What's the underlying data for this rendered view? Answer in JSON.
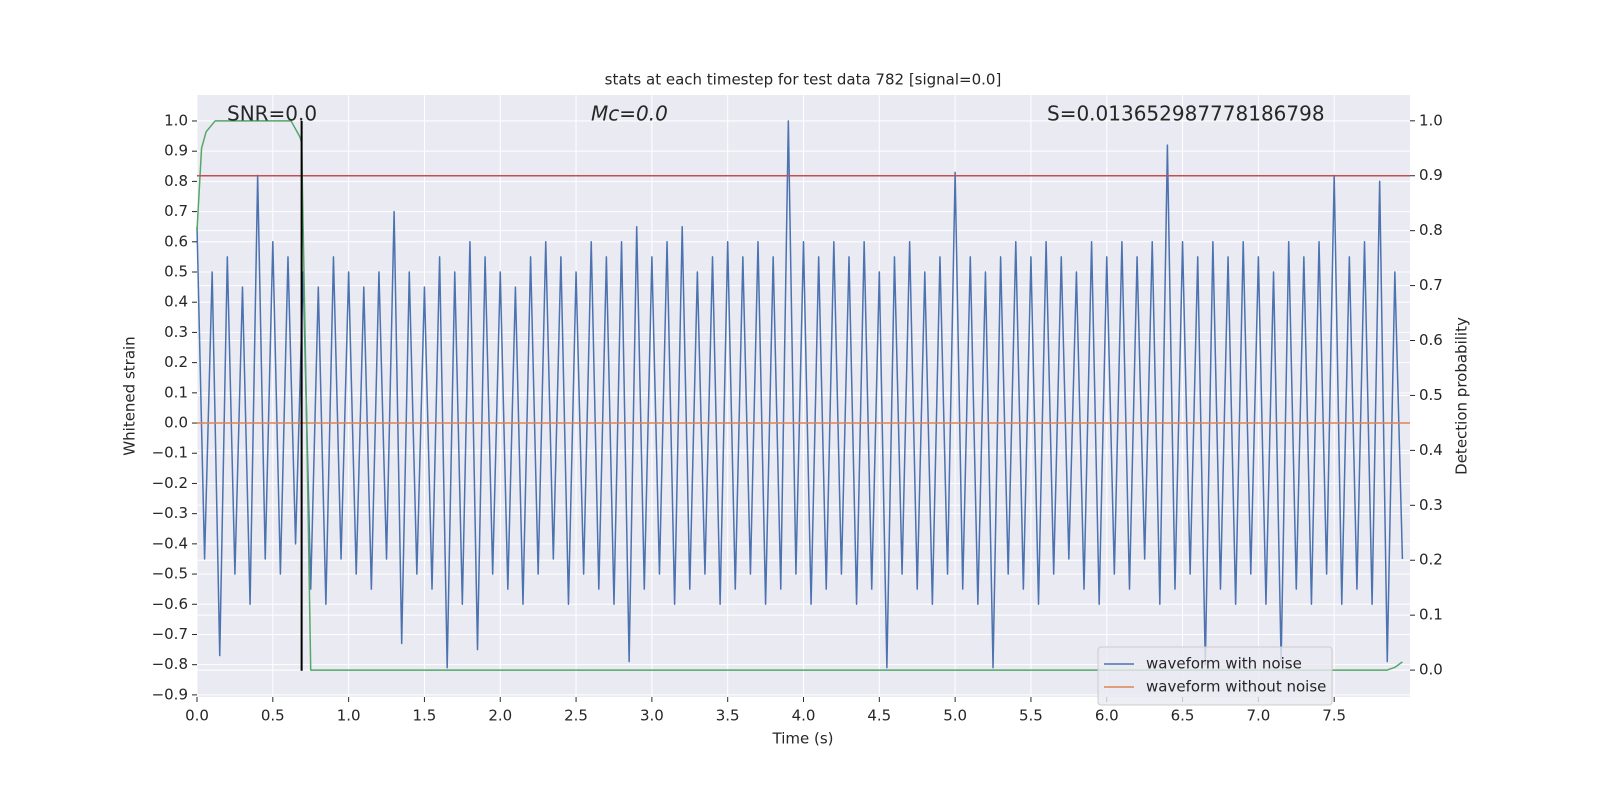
{
  "chart_data": {
    "type": "line",
    "title": "stats at each timestep for test data 782 [signal=0.0]",
    "xlabel": "Time (s)",
    "ylabel": "Whitened strain",
    "y2label": "Detection probability",
    "annotations": [
      "SNR=0.0",
      "Mc=0.0",
      "S=0.013652987778186798"
    ],
    "xlim": [
      0,
      8.0
    ],
    "ylim": [
      -0.907,
      1.086
    ],
    "y2lim": [
      -0.049,
      1.047
    ],
    "xticks": [
      {
        "value": 0,
        "label": "0.0"
      },
      0.5,
      {
        "value": 1,
        "label": "1.0"
      },
      1.5,
      {
        "value": 2,
        "label": "2.0"
      },
      2.5,
      {
        "value": 3,
        "label": "3.0"
      },
      3.5,
      {
        "value": 4,
        "label": "4.0"
      },
      4.5,
      {
        "value": 5,
        "label": "5.0"
      },
      5.5,
      {
        "value": 6,
        "label": "6.0"
      },
      6.5,
      {
        "value": 7,
        "label": "7.0"
      },
      7.5
    ],
    "yticks": [
      {
        "value": -0.9,
        "label": "−0.9"
      },
      {
        "value": -0.8,
        "label": "−0.8"
      },
      {
        "value": -0.7,
        "label": "−0.7"
      },
      {
        "value": -0.6,
        "label": "−0.6"
      },
      {
        "value": -0.5,
        "label": "−0.5"
      },
      {
        "value": -0.4,
        "label": "−0.4"
      },
      {
        "value": -0.3,
        "label": "−0.3"
      },
      {
        "value": -0.2,
        "label": "−0.2"
      },
      {
        "value": -0.1,
        "label": "−0.1"
      },
      {
        "value": 0,
        "label": "0.0"
      },
      0.1,
      0.2,
      0.3,
      0.4,
      0.5,
      0.6,
      0.7,
      0.8,
      0.9,
      {
        "value": 1,
        "label": "1.0"
      }
    ],
    "y2ticks": [
      {
        "value": 0,
        "label": "0.0"
      },
      0.1,
      0.2,
      0.3,
      0.4,
      0.5,
      0.6,
      0.7,
      0.8,
      0.9,
      {
        "value": 1,
        "label": "1.0"
      }
    ],
    "grid": true,
    "legend": "lower right",
    "series": [
      {
        "name": "waveform with noise",
        "color": "#4c72b0",
        "x": [
          0,
          0.05,
          0.1,
          0.15,
          0.2,
          0.25,
          0.3,
          0.35,
          0.4,
          0.45,
          0.5,
          0.55,
          0.6,
          0.65,
          0.7,
          0.75,
          0.8,
          0.85,
          0.9,
          0.95,
          1,
          1.05,
          1.1,
          1.15,
          1.2,
          1.25,
          1.3,
          1.35,
          1.4,
          1.45,
          1.5,
          1.55,
          1.6,
          1.65,
          1.7,
          1.75,
          1.8,
          1.85,
          1.9,
          1.95,
          2,
          2.05,
          2.1,
          2.15,
          2.2,
          2.25,
          2.3,
          2.35,
          2.4,
          2.45,
          2.5,
          2.55,
          2.6,
          2.65,
          2.7,
          2.75,
          2.8,
          2.85,
          2.9,
          2.95,
          3,
          3.05,
          3.1,
          3.15,
          3.2,
          3.25,
          3.3,
          3.35,
          3.4,
          3.45,
          3.5,
          3.55,
          3.6,
          3.65,
          3.7,
          3.75,
          3.8,
          3.85,
          3.9,
          3.95,
          4,
          4.05,
          4.1,
          4.15,
          4.2,
          4.25,
          4.3,
          4.35,
          4.4,
          4.45,
          4.5,
          4.55,
          4.6,
          4.65,
          4.7,
          4.75,
          4.8,
          4.85,
          4.9,
          4.95,
          5,
          5.05,
          5.1,
          5.15,
          5.2,
          5.25,
          5.3,
          5.35,
          5.4,
          5.45,
          5.5,
          5.55,
          5.6,
          5.65,
          5.7,
          5.75,
          5.8,
          5.85,
          5.9,
          5.95,
          6,
          6.05,
          6.1,
          6.15,
          6.2,
          6.25,
          6.3,
          6.35,
          6.4,
          6.45,
          6.5,
          6.55,
          6.6,
          6.65,
          6.7,
          6.75,
          6.8,
          6.85,
          6.9,
          6.95,
          7,
          7.05,
          7.1,
          7.15,
          7.2,
          7.25,
          7.3,
          7.35,
          7.4,
          7.45,
          7.5,
          7.55,
          7.6,
          7.65,
          7.7,
          7.75,
          7.8,
          7.85,
          7.9,
          7.95
        ],
        "values": [
          0.65,
          -0.45,
          0.5,
          -0.77,
          0.55,
          -0.5,
          0.45,
          -0.6,
          0.82,
          -0.45,
          0.6,
          -0.5,
          0.55,
          -0.4,
          0.5,
          -0.55,
          0.45,
          -0.6,
          0.55,
          -0.45,
          0.5,
          -0.5,
          0.45,
          -0.55,
          0.5,
          -0.45,
          0.7,
          -0.73,
          0.5,
          -0.5,
          0.45,
          -0.55,
          0.55,
          -0.81,
          0.5,
          -0.6,
          0.6,
          -0.75,
          0.55,
          -0.5,
          0.5,
          -0.55,
          0.45,
          -0.6,
          0.55,
          -0.5,
          0.6,
          -0.45,
          0.55,
          -0.6,
          0.5,
          -0.5,
          0.6,
          -0.55,
          0.55,
          -0.6,
          0.6,
          -0.79,
          0.65,
          -0.55,
          0.55,
          -0.5,
          0.6,
          -0.6,
          0.65,
          -0.55,
          0.5,
          -0.5,
          0.55,
          -0.6,
          0.6,
          -0.55,
          0.55,
          -0.5,
          0.6,
          -0.6,
          0.55,
          -0.55,
          1.0,
          -0.5,
          0.6,
          -0.6,
          0.55,
          -0.55,
          0.6,
          -0.5,
          0.55,
          -0.6,
          0.6,
          -0.55,
          0.5,
          -0.81,
          0.55,
          -0.5,
          0.6,
          -0.55,
          0.5,
          -0.6,
          0.55,
          -0.5,
          0.83,
          -0.55,
          0.55,
          -0.6,
          0.5,
          -0.81,
          0.55,
          -0.5,
          0.6,
          -0.55,
          0.55,
          -0.6,
          0.6,
          -0.5,
          0.55,
          -0.45,
          0.5,
          -0.55,
          0.6,
          -0.6,
          0.55,
          -0.5,
          0.6,
          -0.55,
          0.55,
          -0.45,
          0.6,
          -0.6,
          0.92,
          -0.55,
          0.6,
          -0.5,
          0.55,
          -0.8,
          0.6,
          -0.55,
          0.55,
          -0.6,
          0.6,
          -0.5,
          0.55,
          -0.6,
          0.5,
          -0.79,
          0.6,
          -0.55,
          0.55,
          -0.6,
          0.6,
          -0.5,
          0.82,
          -0.6,
          0.55,
          -0.55,
          0.6,
          -0.6,
          0.8,
          -0.79,
          0.5,
          -0.45
        ]
      },
      {
        "name": "waveform without noise",
        "color": "#dd8452",
        "x": [
          0,
          8.0
        ],
        "values": [
          0,
          0
        ]
      },
      {
        "color": "#55a868",
        "axis": "y2",
        "x": [
          0,
          0.03,
          0.06,
          0.12,
          0.62,
          0.68,
          0.69,
          0.72,
          0.75,
          7.85,
          7.9,
          7.95
        ],
        "values": [
          0.8,
          0.95,
          0.98,
          1.0,
          1.0,
          0.97,
          0.96,
          0.5,
          0.0,
          0.0,
          0.005,
          0.015
        ]
      }
    ],
    "hlines": [
      {
        "value": 0.9,
        "axis": "y2",
        "color": "#c44e52"
      }
    ],
    "vlines": [
      {
        "x": 0.69,
        "ymin": -0.82,
        "ymax": 1.0,
        "color": "#000000"
      }
    ]
  }
}
